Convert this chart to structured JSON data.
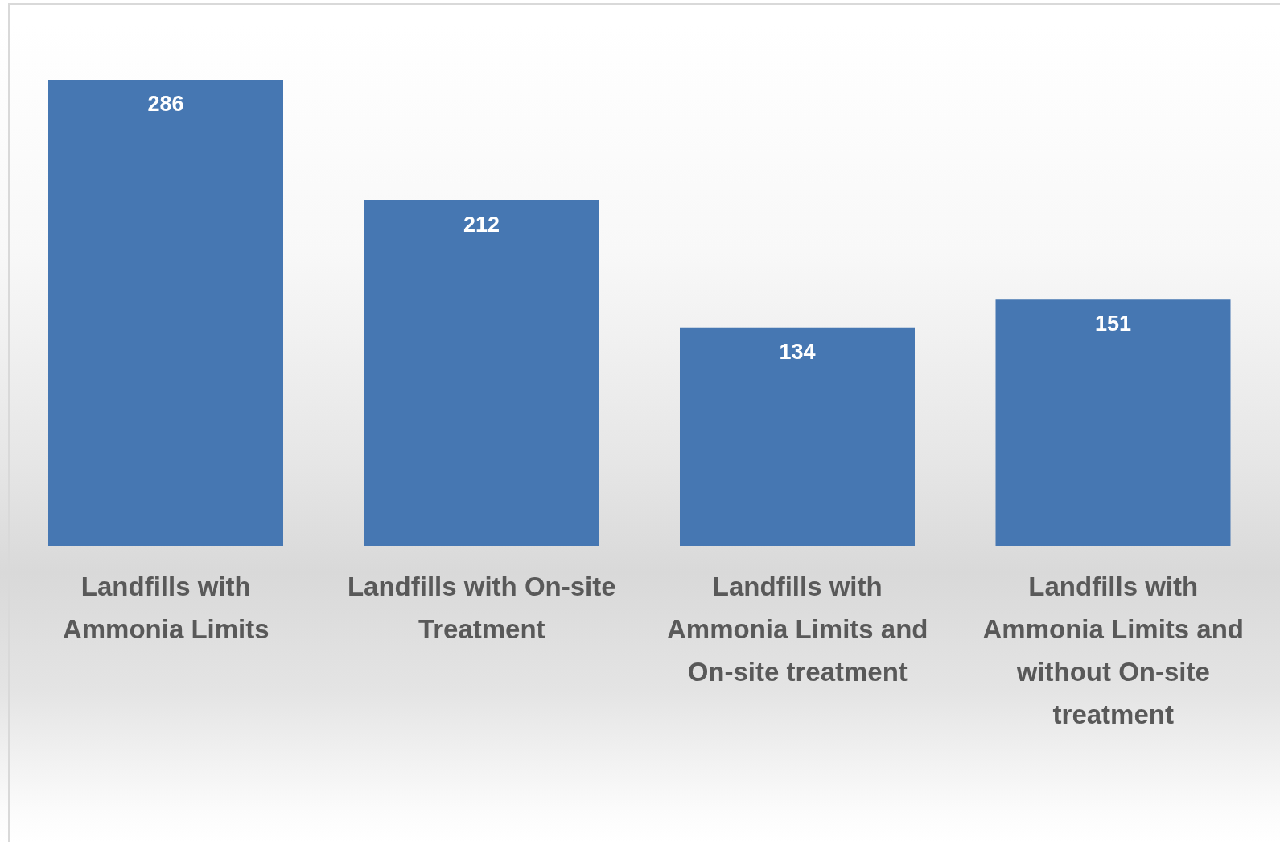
{
  "chart_data": {
    "type": "bar",
    "categories": [
      "Landfills with Ammonia Limits",
      "Landfills with On-site Treatment",
      "Landfills with Ammonia Limits and On-site treatment",
      "Landfills with Ammonia Limits and without On-site treatment"
    ],
    "values": [
      286,
      212,
      134,
      151
    ],
    "color": "#4677b2",
    "data_labels": true,
    "grid": false,
    "legend": false,
    "tick_labels": "x"
  }
}
